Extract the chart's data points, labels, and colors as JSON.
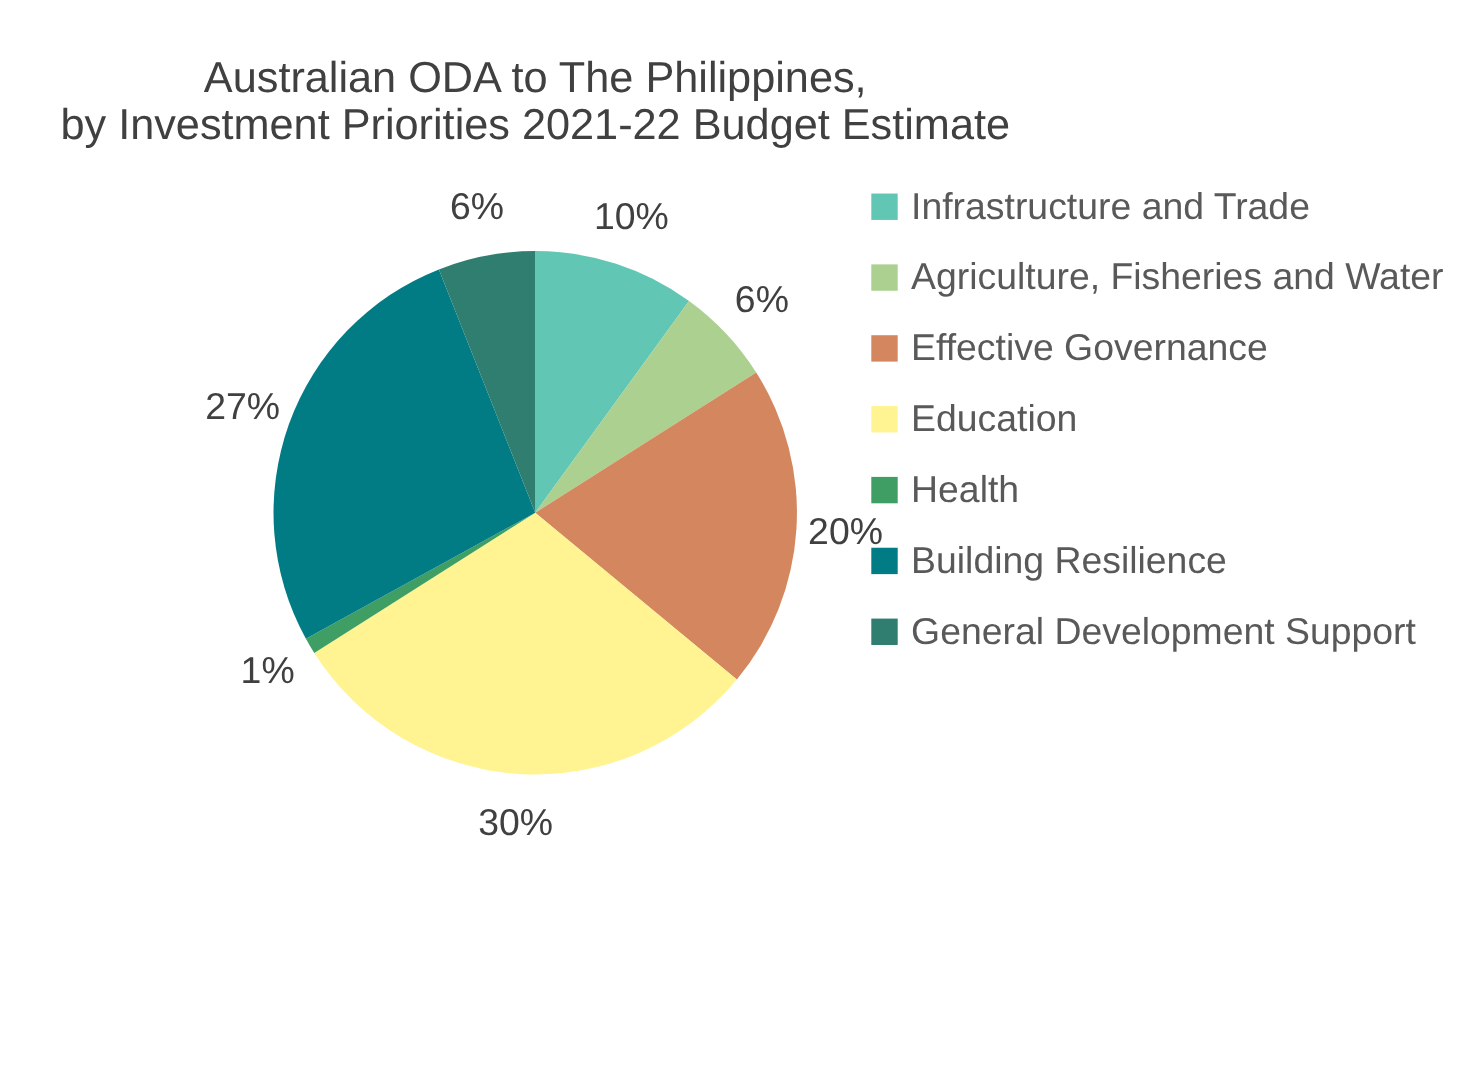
{
  "chart_data": {
    "type": "pie",
    "title": "Australian ODA to The Philippines,\nby Investment Priorities 2021-22 Budget Estimate",
    "categories": [
      "Infrastructure and Trade",
      "Agriculture, Fisheries and Water",
      "Effective Governance",
      "Education",
      "Health",
      "Building Resilience",
      "General Development Support"
    ],
    "values": [
      10,
      6,
      20,
      30,
      1,
      27,
      6
    ],
    "value_labels": [
      "10%",
      "6%",
      "20%",
      "30%",
      "1%",
      "27%",
      "6%"
    ],
    "colors": [
      "#62c6b4",
      "#abd08f",
      "#d4875e",
      "#fff491",
      "#3e9e63",
      "#017b84",
      "#2f7e70"
    ],
    "legend": "right"
  }
}
